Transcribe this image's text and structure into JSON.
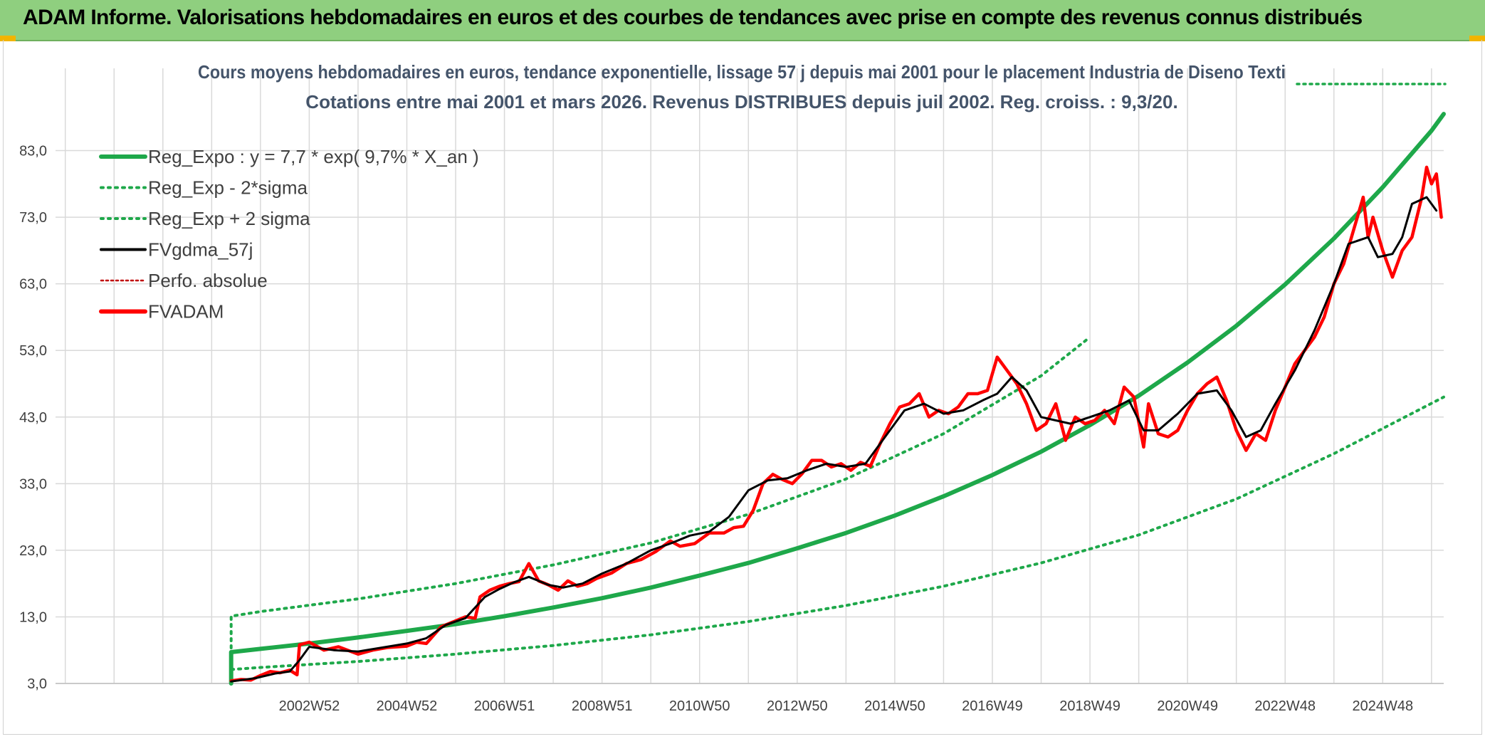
{
  "header": {
    "title": "ADAM Informe. Valorisations hebdomadaires en euros et des courbes de tendances avec prise en compte des revenus connus distribués"
  },
  "colors": {
    "banner": "#8fcf7f",
    "trend": "#1ea84a",
    "smooth": "#000000",
    "price": "#ff0000",
    "perfo": "#c00000",
    "grid": "#d9d9d9"
  },
  "chart_data": {
    "type": "line",
    "title": "Cours moyens hebdomadaires en euros, tendance exponentielle, lissage 57 j depuis mai 2001 pour le placement Industria de Diseno Texti",
    "subtitle": "Cotations entre mai 2001 et mars 2026. Revenus DISTRIBUES depuis juil 2002. Reg. croiss. : 9,3/20.",
    "xlabel": "",
    "ylabel": "",
    "xlim": [
      1997.8,
      2026.25
    ],
    "ylim": [
      3,
      93
    ],
    "y_ticks": [
      "3,0",
      "13,0",
      "23,0",
      "33,0",
      "43,0",
      "53,0",
      "63,0",
      "73,0",
      "83,0"
    ],
    "y_tick_values": [
      3,
      13,
      23,
      33,
      43,
      53,
      63,
      73,
      83
    ],
    "x_ticks": [
      "2002W52",
      "2004W52",
      "2006W51",
      "2008W51",
      "2010W50",
      "2012W50",
      "2014W50",
      "2016W49",
      "2018W49",
      "2020W49",
      "2022W48",
      "2024W48"
    ],
    "x_tick_values": [
      2003.0,
      2005.0,
      2007.0,
      2009.0,
      2011.0,
      2013.0,
      2015.0,
      2017.0,
      2019.0,
      2021.0,
      2023.0,
      2025.0
    ],
    "legend": [
      {
        "name": "Reg_Expo : y = 7,7 * exp( 9,7% *  X_an )",
        "style": "solid-thick",
        "color": "#1ea84a"
      },
      {
        "name": "Reg_Exp - 2*sigma",
        "style": "dotted",
        "color": "#1ea84a"
      },
      {
        "name": "Reg_Exp + 2 sigma",
        "style": "dotted",
        "color": "#1ea84a"
      },
      {
        "name": "FVgdma_57j",
        "style": "solid",
        "color": "#000000"
      },
      {
        "name": "Perfo. absolue",
        "style": "dotted-thin",
        "color": "#c00000"
      },
      {
        "name": "FVADAM",
        "style": "solid-thick",
        "color": "#ff0000"
      }
    ],
    "legend_position": "top-left",
    "series": [
      {
        "name": "Reg_Expo : y = 7,7 * exp( 9,7% *  X_an )",
        "x": [
          2001.4,
          2002.0,
          2003.0,
          2004.0,
          2005.0,
          2006.0,
          2007.0,
          2008.0,
          2009.0,
          2010.0,
          2011.0,
          2012.0,
          2013.0,
          2014.0,
          2015.0,
          2016.0,
          2017.0,
          2018.0,
          2019.0,
          2020.0,
          2021.0,
          2022.0,
          2023.0,
          2024.0,
          2025.0,
          2026.0,
          2026.25
        ],
        "values": [
          7.7,
          8.2,
          9.0,
          9.9,
          10.9,
          11.9,
          13.1,
          14.4,
          15.8,
          17.4,
          19.2,
          21.1,
          23.3,
          25.6,
          28.2,
          31.1,
          34.3,
          37.8,
          41.8,
          46.2,
          51.2,
          56.7,
          62.9,
          69.8,
          77.5,
          86.0,
          88.5
        ]
      },
      {
        "name": "Reg_Exp - 2*sigma",
        "x": [
          2001.4,
          2002.0,
          2004.0,
          2006.0,
          2008.0,
          2010.0,
          2012.0,
          2014.0,
          2016.0,
          2018.0,
          2020.0,
          2022.0,
          2024.0,
          2026.25
        ],
        "values": [
          5.1,
          5.4,
          6.3,
          7.4,
          8.7,
          10.3,
          12.3,
          14.7,
          17.6,
          21.1,
          25.3,
          30.7,
          37.5,
          46.0
        ]
      },
      {
        "name": "Reg_Exp + 2 sigma",
        "x": [
          2001.4,
          2002.0,
          2004.0,
          2006.0,
          2008.0,
          2010.0,
          2012.0,
          2014.0,
          2016.0,
          2018.0,
          2019.0
        ],
        "values": [
          13.1,
          13.8,
          15.7,
          18.0,
          20.8,
          24.1,
          28.4,
          33.7,
          40.5,
          49.2,
          55.0
        ]
      },
      {
        "name": "FVgdma_57j",
        "x": [
          2001.4,
          2001.9,
          2002.3,
          2002.6,
          2002.8,
          2003.0,
          2003.5,
          2004.0,
          2004.5,
          2005.0,
          2005.4,
          2005.8,
          2006.2,
          2006.6,
          2006.9,
          2007.2,
          2007.5,
          2007.9,
          2008.2,
          2008.6,
          2009.0,
          2009.5,
          2010.0,
          2010.4,
          2010.8,
          2011.2,
          2011.6,
          2012.0,
          2012.4,
          2012.8,
          2013.2,
          2013.6,
          2014.0,
          2014.4,
          2014.8,
          2015.2,
          2015.6,
          2016.0,
          2016.4,
          2016.8,
          2017.1,
          2017.4,
          2017.7,
          2018.0,
          2018.3,
          2018.6,
          2019.0,
          2019.4,
          2019.8,
          2020.1,
          2020.4,
          2020.8,
          2021.2,
          2021.6,
          2021.9,
          2022.2,
          2022.5,
          2022.8,
          2023.2,
          2023.6,
          2024.0,
          2024.3,
          2024.7,
          2024.9,
          2025.2,
          2025.4,
          2025.6,
          2025.9,
          2026.1
        ],
        "values": [
          3.3,
          3.8,
          4.5,
          4.8,
          6.5,
          8.5,
          8.0,
          7.8,
          8.4,
          9.0,
          9.8,
          11.8,
          12.8,
          16.0,
          17.2,
          18.2,
          19.0,
          17.8,
          17.4,
          18.0,
          19.5,
          21.0,
          23.0,
          24.0,
          25.2,
          25.8,
          28.0,
          32.0,
          33.5,
          33.8,
          35.0,
          36.0,
          35.5,
          36.0,
          40.0,
          44.0,
          45.0,
          43.5,
          44.0,
          45.5,
          46.5,
          49.0,
          47.0,
          43.0,
          42.5,
          42.0,
          43.0,
          44.0,
          45.5,
          41.0,
          41.0,
          43.5,
          46.5,
          47.0,
          44.0,
          40.0,
          41.0,
          45.0,
          50.0,
          56.0,
          63.0,
          69.0,
          70.0,
          67.0,
          67.5,
          70.0,
          75.0,
          76.0,
          74.0
        ]
      },
      {
        "name": "FVADAM",
        "x": [
          2001.4,
          2001.6,
          2001.8,
          2002.0,
          2002.2,
          2002.4,
          2002.6,
          2002.75,
          2002.8,
          2003.0,
          2003.3,
          2003.6,
          2004.0,
          2004.3,
          2004.6,
          2005.0,
          2005.2,
          2005.4,
          2005.7,
          2006.0,
          2006.2,
          2006.4,
          2006.5,
          2006.7,
          2006.9,
          2007.1,
          2007.3,
          2007.5,
          2007.7,
          2007.9,
          2008.1,
          2008.3,
          2008.5,
          2008.7,
          2008.9,
          2009.2,
          2009.5,
          2009.8,
          2010.1,
          2010.4,
          2010.6,
          2010.9,
          2011.2,
          2011.5,
          2011.7,
          2011.9,
          2012.1,
          2012.3,
          2012.5,
          2012.7,
          2012.9,
          2013.1,
          2013.3,
          2013.5,
          2013.7,
          2013.9,
          2014.1,
          2014.3,
          2014.5,
          2014.7,
          2014.9,
          2015.1,
          2015.3,
          2015.5,
          2015.7,
          2015.9,
          2016.1,
          2016.3,
          2016.5,
          2016.7,
          2016.9,
          2017.1,
          2017.3,
          2017.5,
          2017.7,
          2017.9,
          2018.1,
          2018.3,
          2018.5,
          2018.7,
          2018.9,
          2019.1,
          2019.3,
          2019.5,
          2019.7,
          2019.9,
          2020.1,
          2020.2,
          2020.4,
          2020.6,
          2020.8,
          2021.0,
          2021.2,
          2021.4,
          2021.6,
          2021.8,
          2022.0,
          2022.2,
          2022.4,
          2022.6,
          2022.8,
          2023.0,
          2023.2,
          2023.4,
          2023.6,
          2023.8,
          2024.0,
          2024.2,
          2024.4,
          2024.6,
          2024.7,
          2024.8,
          2025.0,
          2025.2,
          2025.4,
          2025.6,
          2025.8,
          2025.9,
          2026.0,
          2026.1,
          2026.2
        ],
        "values": [
          3.4,
          3.6,
          3.5,
          4.2,
          4.8,
          4.6,
          5.0,
          4.3,
          8.8,
          9.2,
          8.0,
          8.5,
          7.4,
          8.0,
          8.4,
          8.6,
          9.2,
          9.0,
          11.5,
          12.4,
          13.0,
          12.8,
          16.0,
          17.0,
          17.6,
          18.0,
          18.3,
          21.0,
          18.4,
          17.8,
          17.0,
          18.4,
          17.6,
          18.0,
          18.8,
          19.6,
          21.0,
          21.6,
          22.8,
          24.4,
          23.6,
          24.0,
          25.6,
          25.6,
          26.4,
          26.6,
          29.0,
          33.0,
          34.4,
          33.6,
          33.0,
          34.5,
          36.5,
          36.5,
          35.5,
          36.0,
          35.0,
          36.2,
          35.6,
          39.0,
          42.0,
          44.5,
          45.0,
          46.5,
          43.0,
          44.0,
          43.5,
          44.5,
          46.5,
          46.5,
          47.0,
          52.0,
          50.0,
          48.0,
          45.0,
          41.0,
          42.0,
          45.0,
          39.5,
          43.0,
          42.0,
          42.5,
          44.0,
          42.0,
          47.5,
          46.0,
          38.5,
          45.0,
          40.5,
          40.0,
          41.0,
          44.0,
          46.5,
          48.0,
          49.0,
          45.5,
          41.0,
          38.0,
          40.5,
          39.5,
          44.0,
          47.5,
          51.0,
          53.0,
          55.0,
          58.0,
          63.0,
          66.0,
          71.0,
          76.0,
          70.0,
          73.0,
          68.0,
          64.0,
          68.0,
          70.0,
          76.0,
          80.5,
          78.0,
          79.5,
          73.0
        ]
      }
    ]
  }
}
